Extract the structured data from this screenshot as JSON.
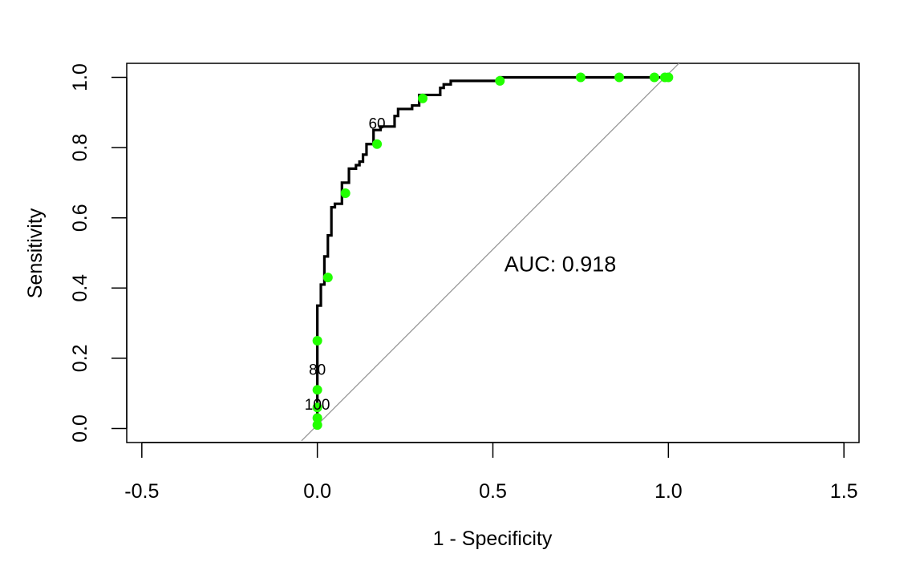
{
  "chart_data": {
    "type": "line",
    "xlabel": "1 - Specificity",
    "ylabel": "Sensitivity",
    "xlim": [
      -0.543,
      1.543
    ],
    "ylim": [
      -0.04,
      1.04
    ],
    "xticks": [
      -0.5,
      0.0,
      0.5,
      1.0,
      1.5
    ],
    "xtick_labels": [
      "-0.5",
      "0.0",
      "0.5",
      "1.0",
      "1.5"
    ],
    "yticks": [
      0.0,
      0.2,
      0.4,
      0.6,
      0.8,
      1.0
    ],
    "ytick_labels": [
      "0.0",
      "0.2",
      "0.4",
      "0.6",
      "0.8",
      "1.0"
    ],
    "grid": false,
    "series": [
      {
        "kind": "roc-curve",
        "color": "#000000",
        "x": [
          0.0,
          0.0,
          0.0,
          0.0,
          0.01,
          0.01,
          0.02,
          0.02,
          0.03,
          0.03,
          0.04,
          0.04,
          0.05,
          0.05,
          0.06,
          0.06,
          0.07,
          0.07,
          0.08,
          0.08,
          0.09,
          0.09,
          0.11,
          0.11,
          0.12,
          0.12,
          0.13,
          0.13,
          0.14,
          0.14,
          0.15,
          0.15,
          0.16,
          0.16,
          0.18,
          0.18,
          0.19,
          0.19,
          0.22,
          0.22,
          0.23,
          0.23,
          0.24,
          0.24,
          0.27,
          0.27,
          0.29,
          0.29,
          0.31,
          0.31,
          0.35,
          0.35,
          0.36,
          0.36,
          0.38,
          0.38,
          0.4,
          0.52,
          0.52,
          0.75,
          1.0
        ],
        "y": [
          0.0,
          0.03,
          0.25,
          0.35,
          0.35,
          0.41,
          0.41,
          0.49,
          0.49,
          0.55,
          0.55,
          0.63,
          0.63,
          0.64,
          0.64,
          0.64,
          0.64,
          0.7,
          0.7,
          0.7,
          0.7,
          0.74,
          0.74,
          0.75,
          0.75,
          0.76,
          0.76,
          0.78,
          0.78,
          0.81,
          0.81,
          0.81,
          0.81,
          0.85,
          0.85,
          0.86,
          0.86,
          0.86,
          0.86,
          0.89,
          0.89,
          0.91,
          0.91,
          0.91,
          0.91,
          0.92,
          0.92,
          0.95,
          0.95,
          0.95,
          0.95,
          0.97,
          0.97,
          0.98,
          0.98,
          0.99,
          0.99,
          0.99,
          1.0,
          1.0,
          1.0
        ]
      },
      {
        "kind": "threshold-points",
        "color": "#22ff00",
        "x": [
          0.0,
          0.0,
          0.0,
          0.0,
          0.0,
          0.03,
          0.08,
          0.17,
          0.3,
          0.52,
          0.75,
          0.86,
          0.96,
          0.99,
          1.0
        ],
        "y": [
          0.01,
          0.03,
          0.06,
          0.11,
          0.25,
          0.43,
          0.67,
          0.81,
          0.94,
          0.99,
          1.0,
          1.0,
          1.0,
          1.0,
          1.0
        ]
      },
      {
        "kind": "reference-line",
        "color": "#999999",
        "x": [
          -0.045,
          1.035
        ],
        "y": [
          -0.035,
          1.045
        ]
      }
    ],
    "annotations": [
      {
        "text": "60",
        "x": 0.17,
        "y": 0.81
      },
      {
        "text": "80",
        "x": 0.0,
        "y": 0.11
      },
      {
        "text": "100",
        "x": 0.0,
        "y": 0.01
      }
    ],
    "auc_label": {
      "text": "AUC: 0.918",
      "x": 0.5,
      "y": 0.47
    }
  }
}
